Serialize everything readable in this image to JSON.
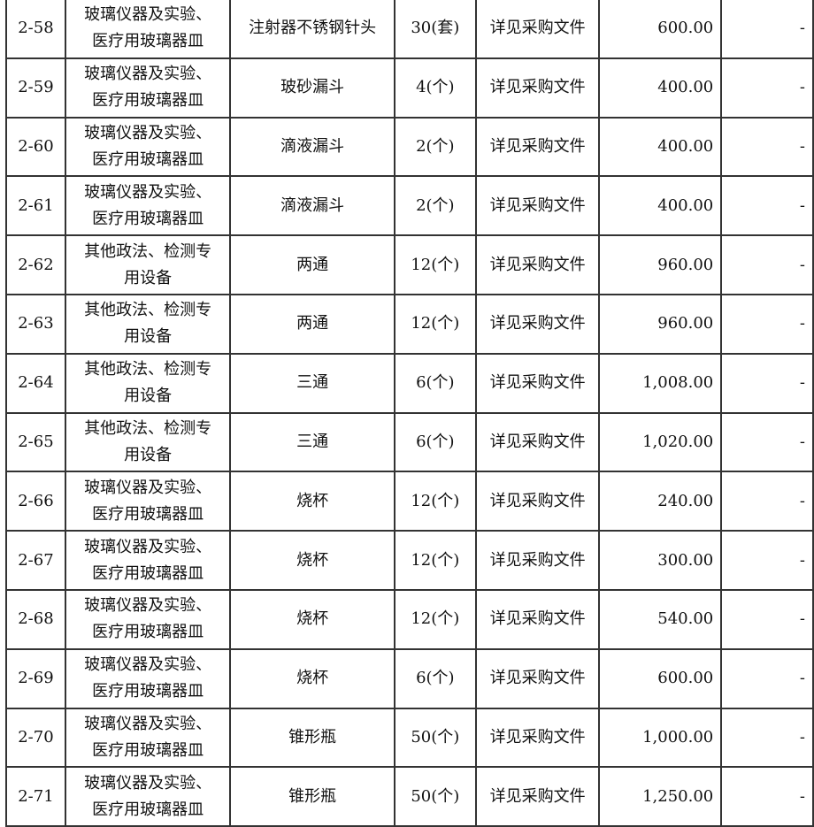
{
  "rows": [
    {
      "no": "2-58",
      "cat1": "玻璃仪器及实验、",
      "cat2": "医疗用玻璃器皿",
      "name": "注射器不锈钢针头",
      "qty": "30(套)",
      "spec": "详见采购文件",
      "price": "600.00",
      "note": "-"
    },
    {
      "no": "2-59",
      "cat1": "玻璃仪器及实验、",
      "cat2": "医疗用玻璃器皿",
      "name": "玻砂漏斗",
      "qty": "4(个)",
      "spec": "详见采购文件",
      "price": "400.00",
      "note": "-"
    },
    {
      "no": "2-60",
      "cat1": "玻璃仪器及实验、",
      "cat2": "医疗用玻璃器皿",
      "name": "滴液漏斗",
      "qty": "2(个)",
      "spec": "详见采购文件",
      "price": "400.00",
      "note": "-"
    },
    {
      "no": "2-61",
      "cat1": "玻璃仪器及实验、",
      "cat2": "医疗用玻璃器皿",
      "name": "滴液漏斗",
      "qty": "2(个)",
      "spec": "详见采购文件",
      "price": "400.00",
      "note": "-"
    },
    {
      "no": "2-62",
      "cat1": "其他政法、检测专",
      "cat2": "用设备",
      "name": "两通",
      "qty": "12(个)",
      "spec": "详见采购文件",
      "price": "960.00",
      "note": "-"
    },
    {
      "no": "2-63",
      "cat1": "其他政法、检测专",
      "cat2": "用设备",
      "name": "两通",
      "qty": "12(个)",
      "spec": "详见采购文件",
      "price": "960.00",
      "note": "-"
    },
    {
      "no": "2-64",
      "cat1": "其他政法、检测专",
      "cat2": "用设备",
      "name": "三通",
      "qty": "6(个)",
      "spec": "详见采购文件",
      "price": "1,008.00",
      "note": "-"
    },
    {
      "no": "2-65",
      "cat1": "其他政法、检测专",
      "cat2": "用设备",
      "name": "三通",
      "qty": "6(个)",
      "spec": "详见采购文件",
      "price": "1,020.00",
      "note": "-"
    },
    {
      "no": "2-66",
      "cat1": "玻璃仪器及实验、",
      "cat2": "医疗用玻璃器皿",
      "name": "烧杯",
      "qty": "12(个)",
      "spec": "详见采购文件",
      "price": "240.00",
      "note": "-"
    },
    {
      "no": "2-67",
      "cat1": "玻璃仪器及实验、",
      "cat2": "医疗用玻璃器皿",
      "name": "烧杯",
      "qty": "12(个)",
      "spec": "详见采购文件",
      "price": "300.00",
      "note": "-"
    },
    {
      "no": "2-68",
      "cat1": "玻璃仪器及实验、",
      "cat2": "医疗用玻璃器皿",
      "name": "烧杯",
      "qty": "12(个)",
      "spec": "详见采购文件",
      "price": "540.00",
      "note": "-"
    },
    {
      "no": "2-69",
      "cat1": "玻璃仪器及实验、",
      "cat2": "医疗用玻璃器皿",
      "name": "烧杯",
      "qty": "6(个)",
      "spec": "详见采购文件",
      "price": "600.00",
      "note": "-"
    },
    {
      "no": "2-70",
      "cat1": "玻璃仪器及实验、",
      "cat2": "医疗用玻璃器皿",
      "name": "锥形瓶",
      "qty": "50(个)",
      "spec": "详见采购文件",
      "price": "1,000.00",
      "note": "-"
    },
    {
      "no": "2-71",
      "cat1": "玻璃仪器及实验、",
      "cat2": "医疗用玻璃器皿",
      "name": "锥形瓶",
      "qty": "50(个)",
      "spec": "详见采购文件",
      "price": "1,250.00",
      "note": "-"
    }
  ]
}
